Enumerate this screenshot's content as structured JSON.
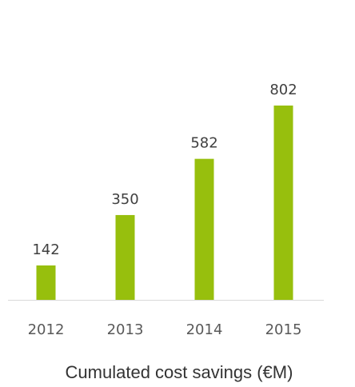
{
  "chart_data": {
    "type": "bar",
    "title": "Cumulated cost savings (€M)",
    "categories": [
      "2012",
      "2013",
      "2014",
      "2015"
    ],
    "values": [
      142,
      350,
      582,
      802
    ],
    "color": "#97bf0d"
  }
}
